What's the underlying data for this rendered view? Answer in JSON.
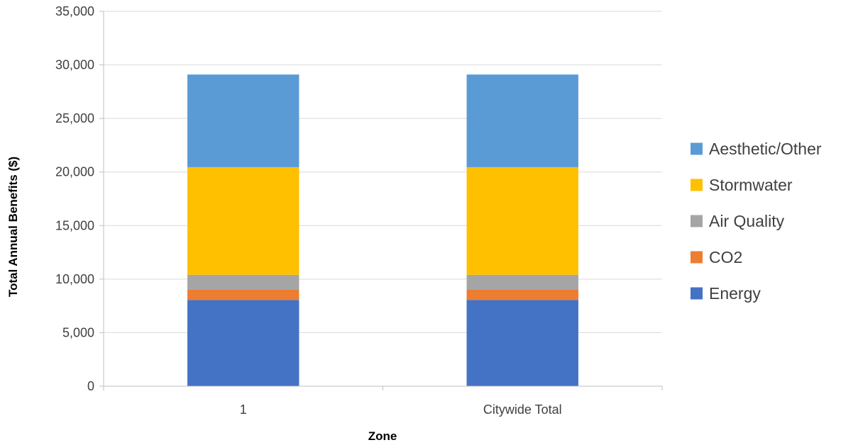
{
  "chart_data": {
    "type": "bar",
    "stacked": true,
    "categories": [
      "1",
      "Citywide Total"
    ],
    "series": [
      {
        "name": "Energy",
        "values": [
          8050,
          8050
        ],
        "color": "#4472C4"
      },
      {
        "name": "CO2",
        "values": [
          950,
          950
        ],
        "color": "#ED7D31"
      },
      {
        "name": "Air Quality",
        "values": [
          1400,
          1400
        ],
        "color": "#A5A5A5"
      },
      {
        "name": "Stormwater",
        "values": [
          10050,
          10050
        ],
        "color": "#FFC000"
      },
      {
        "name": "Aesthetic/Other",
        "values": [
          8650,
          8650
        ],
        "color": "#5B9BD5"
      }
    ],
    "title": "",
    "xlabel": "Zone",
    "ylabel": "Total Annual Benefits ($)",
    "ylim": [
      0,
      35000
    ],
    "yticks": [
      "0",
      "5,000",
      "10,000",
      "15,000",
      "20,000",
      "25,000",
      "30,000",
      "35,000"
    ],
    "grid": "horizontal",
    "legend_position": "right",
    "gridline_color": "#D9D9D9",
    "axis_color": "#BFBFBF"
  }
}
